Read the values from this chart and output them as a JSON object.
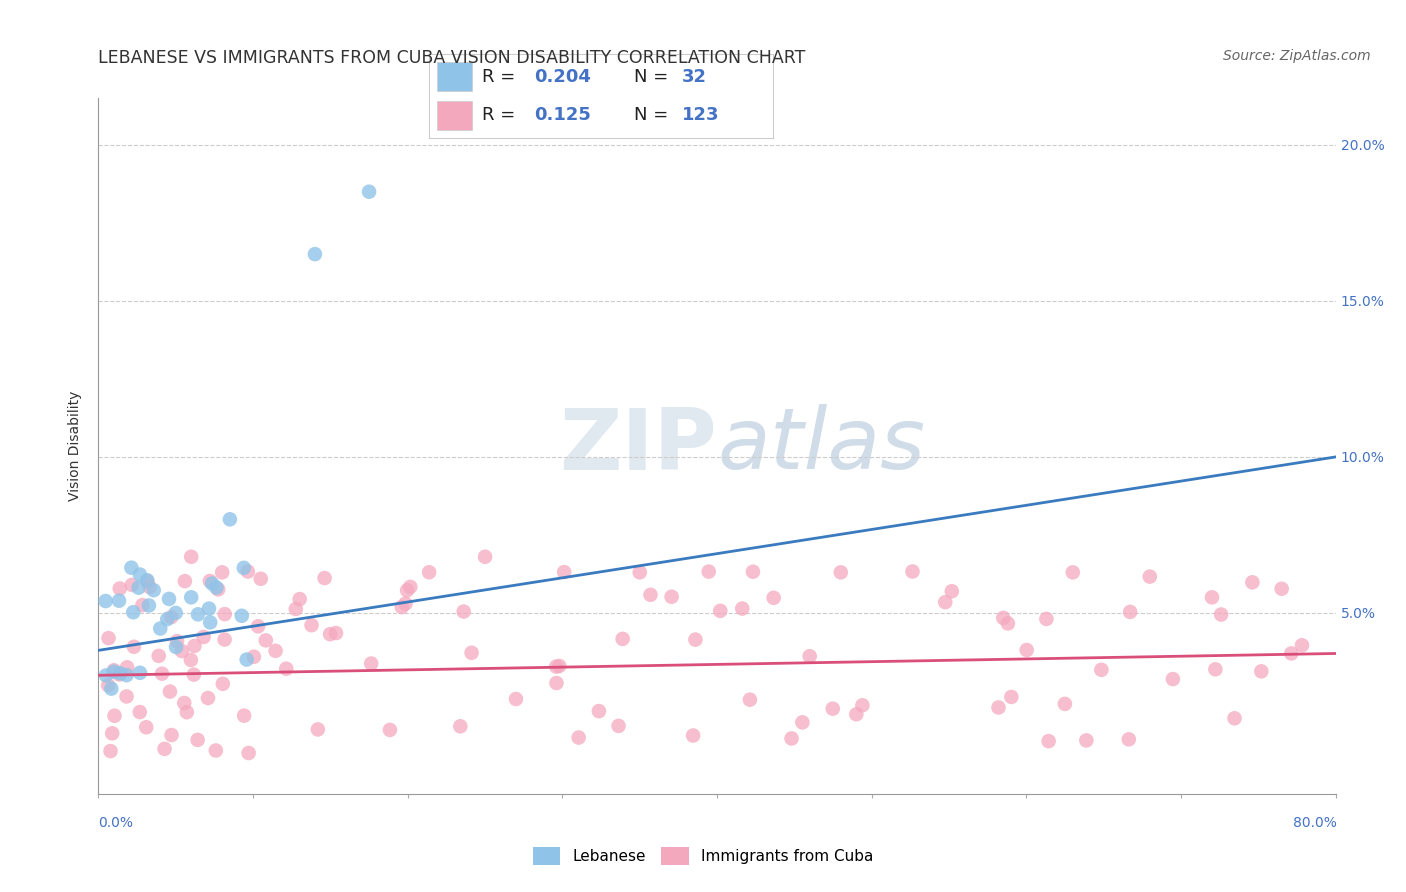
{
  "title": "LEBANESE VS IMMIGRANTS FROM CUBA VISION DISABILITY CORRELATION CHART",
  "source": "Source: ZipAtlas.com",
  "ylabel": "Vision Disability",
  "r_lebanese": "0.204",
  "n_lebanese": "32",
  "r_cuba": "0.125",
  "n_cuba": "123",
  "blue_color": "#8fc4e8",
  "pink_color": "#f4a8be",
  "blue_line_color": "#3a7bbf",
  "pink_line_color": "#d94f7a",
  "xmin": 0.0,
  "xmax": 0.8,
  "ymin": -0.008,
  "ymax": 0.215,
  "blue_line_x0": 0.0,
  "blue_line_y0": 0.038,
  "blue_line_x1": 0.8,
  "blue_line_y1": 0.1,
  "pink_line_x0": 0.0,
  "pink_line_y0": 0.03,
  "pink_line_x1": 0.8,
  "pink_line_y1": 0.037,
  "ytick_vals": [
    0.05,
    0.1,
    0.15,
    0.2
  ],
  "ytick_labels": [
    "5.0%",
    "10.0%",
    "15.0%",
    "20.0%"
  ],
  "title_fontsize": 12.5,
  "axis_label_fontsize": 10,
  "tick_label_fontsize": 10,
  "source_fontsize": 10,
  "background_color": "#ffffff",
  "grid_color": "#cccccc",
  "text_color": "#333333",
  "blue_label_color": "#4472c4",
  "pink_label_color": "#4472c4"
}
